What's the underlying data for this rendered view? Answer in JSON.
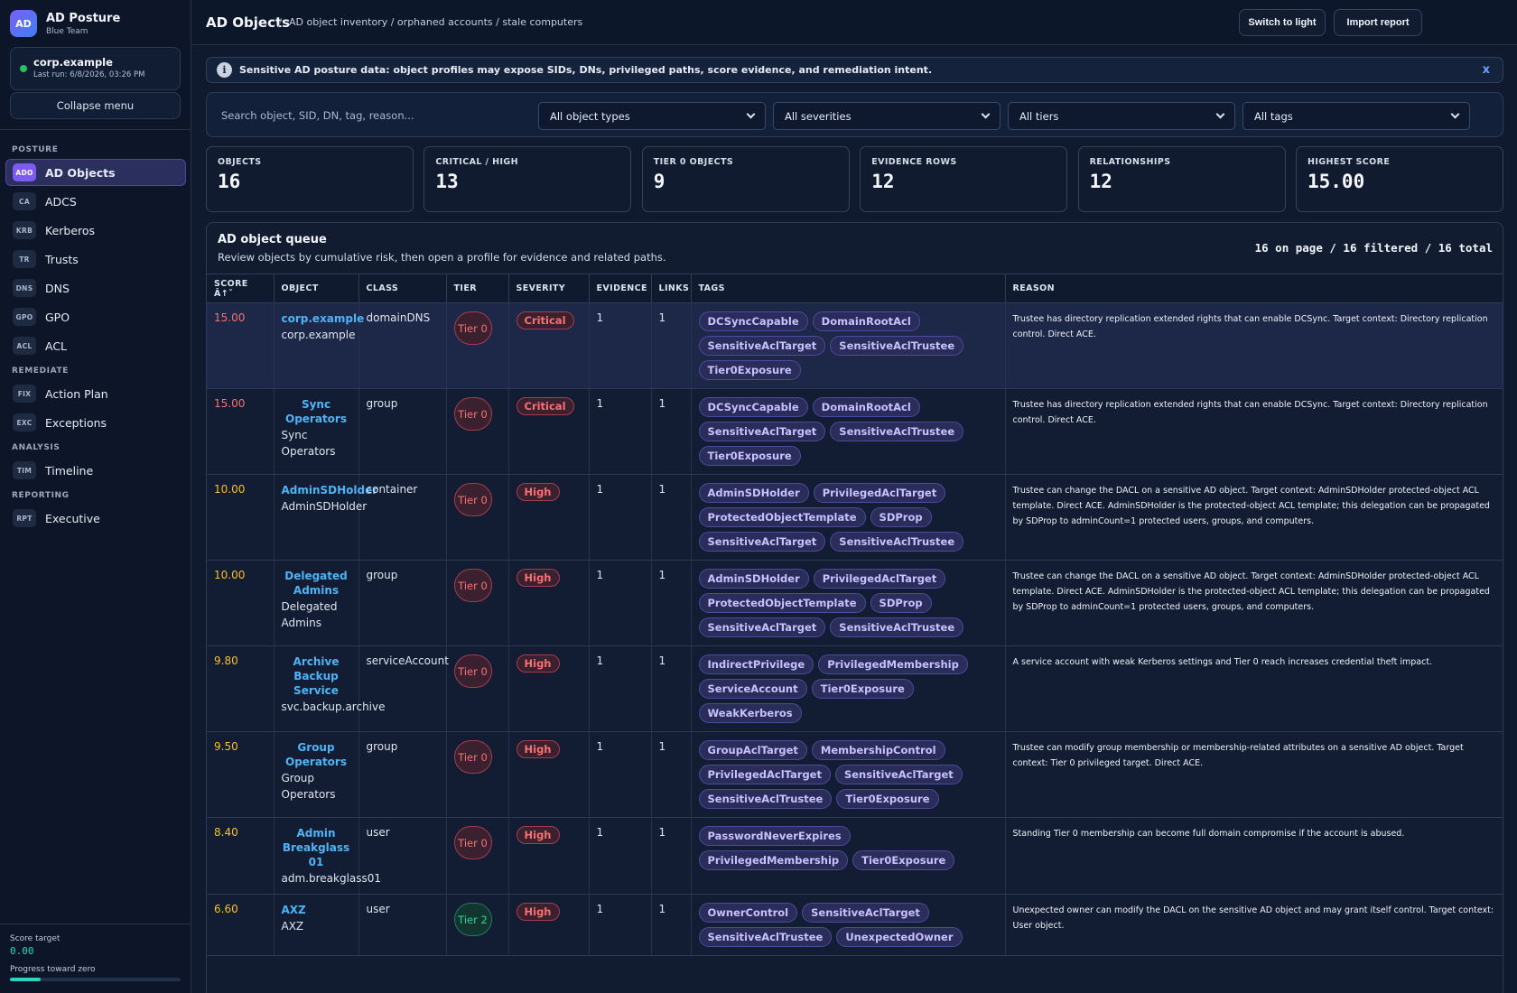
{
  "sidebar": {
    "logo": "AD",
    "title": "AD Posture",
    "subtitle": "Blue Team",
    "domain": "corp.example",
    "last_run": "Last run: 6/8/2026, 03:26 PM",
    "collapse_label": "Collapse menu",
    "sections": [
      {
        "label": "POSTURE",
        "items": [
          {
            "badge": "ADO",
            "label": "AD Objects",
            "active": true
          },
          {
            "badge": "CA",
            "label": "ADCS"
          },
          {
            "badge": "KRB",
            "label": "Kerberos"
          },
          {
            "badge": "TR",
            "label": "Trusts"
          },
          {
            "badge": "DNS",
            "label": "DNS"
          },
          {
            "badge": "GPO",
            "label": "GPO"
          },
          {
            "badge": "ACL",
            "label": "ACL"
          }
        ]
      },
      {
        "label": "REMEDIATE",
        "items": [
          {
            "badge": "FIX",
            "label": "Action Plan"
          },
          {
            "badge": "EXC",
            "label": "Exceptions"
          }
        ]
      },
      {
        "label": "ANALYSIS",
        "items": [
          {
            "badge": "TIM",
            "label": "Timeline"
          }
        ]
      },
      {
        "label": "REPORTING",
        "items": [
          {
            "badge": "RPT",
            "label": "Executive"
          }
        ]
      }
    ],
    "score_target_label": "Score target",
    "score_target_value": "0.00",
    "progress_label": "Progress toward zero",
    "progress_fraction": 0.18
  },
  "header": {
    "title": "AD Objects",
    "breadcrumb": "AD object inventory / orphaned accounts / stale computers",
    "switch_label": "Switch to light",
    "import_label": "Import report"
  },
  "notice": {
    "text": "Sensitive AD posture data: object profiles may expose SIDs, DNs, privileged paths, score evidence, and remediation intent.",
    "close": "x"
  },
  "filters": {
    "search_placeholder": "Search object, SID, DN, tag, reason...",
    "object_types": "All object types",
    "severities": "All severities",
    "tiers": "All tiers",
    "tags": "All tags"
  },
  "stats": [
    {
      "label": "OBJECTS",
      "value": "16"
    },
    {
      "label": "CRITICAL / HIGH",
      "value": "13"
    },
    {
      "label": "TIER 0 OBJECTS",
      "value": "9"
    },
    {
      "label": "EVIDENCE ROWS",
      "value": "12"
    },
    {
      "label": "RELATIONSHIPS",
      "value": "12"
    },
    {
      "label": "HIGHEST SCORE",
      "value": "15.00"
    }
  ],
  "queue": {
    "title": "AD object queue",
    "subtitle": "Review objects by cumulative risk, then open a profile for evidence and related paths.",
    "count": "16 on page / 16 filtered / 16 total",
    "columns": [
      "SCORE Â↑ˇ",
      "OBJECT",
      "CLASS",
      "TIER",
      "SEVERITY",
      "EVIDENCE",
      "LINKS",
      "TAGS",
      "REASON"
    ],
    "rows": [
      {
        "score": "15.00",
        "score_level": "red",
        "name": "corp.example",
        "sub": "corp.example",
        "name_left": true,
        "class": "domainDNS",
        "tier": "Tier 0",
        "tier_level": 0,
        "severity": "Critical",
        "evidence": "1",
        "links": "1",
        "tags": [
          "DCSyncCapable",
          "DomainRootAcl",
          "SensitiveAclTarget",
          "SensitiveAclTrustee",
          "Tier0Exposure"
        ],
        "reason": "Trustee has directory replication extended rights that can enable DCSync. Target context: Directory replication control. Direct ACE."
      },
      {
        "score": "15.00",
        "score_level": "red",
        "name": "Sync Operators",
        "sub": "Sync Operators",
        "class": "group",
        "tier": "Tier 0",
        "tier_level": 0,
        "severity": "Critical",
        "evidence": "1",
        "links": "1",
        "tags": [
          "DCSyncCapable",
          "DomainRootAcl",
          "SensitiveAclTarget",
          "SensitiveAclTrustee",
          "Tier0Exposure"
        ],
        "reason": "Trustee has directory replication extended rights that can enable DCSync. Target context: Directory replication control. Direct ACE."
      },
      {
        "score": "10.00",
        "score_level": "amber",
        "name": "AdminSDHolder",
        "sub": "AdminSDHolder",
        "class": "container",
        "tier": "Tier 0",
        "tier_level": 0,
        "severity": "High",
        "evidence": "1",
        "links": "1",
        "tags": [
          "AdminSDHolder",
          "PrivilegedAclTarget",
          "ProtectedObjectTemplate",
          "SDProp",
          "SensitiveAclTarget",
          "SensitiveAclTrustee"
        ],
        "reason": "Trustee can change the DACL on a sensitive AD object. Target context: AdminSDHolder protected-object ACL template. Direct ACE. AdminSDHolder is the protected-object ACL template; this delegation can be propagated by SDProp to adminCount=1 protected users, groups, and computers."
      },
      {
        "score": "10.00",
        "score_level": "amber",
        "name": "Delegated Admins",
        "sub": "Delegated Admins",
        "class": "group",
        "tier": "Tier 0",
        "tier_level": 0,
        "severity": "High",
        "evidence": "1",
        "links": "1",
        "tags": [
          "AdminSDHolder",
          "PrivilegedAclTarget",
          "ProtectedObjectTemplate",
          "SDProp",
          "SensitiveAclTarget",
          "SensitiveAclTrustee"
        ],
        "reason": "Trustee can change the DACL on a sensitive AD object. Target context: AdminSDHolder protected-object ACL template. Direct ACE. AdminSDHolder is the protected-object ACL template; this delegation can be propagated by SDProp to adminCount=1 protected users, groups, and computers."
      },
      {
        "score": "9.80",
        "score_level": "amber",
        "name": "Archive Backup Service",
        "sub": "svc.backup.archive",
        "class": "serviceAccount",
        "tier": "Tier 0",
        "tier_level": 0,
        "severity": "High",
        "evidence": "1",
        "links": "1",
        "tags": [
          "IndirectPrivilege",
          "PrivilegedMembership",
          "ServiceAccount",
          "Tier0Exposure",
          "WeakKerberos"
        ],
        "reason": "A service account with weak Kerberos settings and Tier 0 reach increases credential theft impact."
      },
      {
        "score": "9.50",
        "score_level": "amber",
        "name": "Group Operators",
        "sub": "Group Operators",
        "class": "group",
        "tier": "Tier 0",
        "tier_level": 0,
        "severity": "High",
        "evidence": "1",
        "links": "1",
        "tags": [
          "GroupAclTarget",
          "MembershipControl",
          "PrivilegedAclTarget",
          "SensitiveAclTarget",
          "SensitiveAclTrustee",
          "Tier0Exposure"
        ],
        "reason": "Trustee can modify group membership or membership-related attributes on a sensitive AD object. Target context: Tier 0 privileged target. Direct ACE."
      },
      {
        "score": "8.40",
        "score_level": "amber",
        "name": "Admin Breakglass 01",
        "sub": "adm.breakglass01",
        "class": "user",
        "tier": "Tier 0",
        "tier_level": 0,
        "severity": "High",
        "evidence": "1",
        "links": "1",
        "tags": [
          "PasswordNeverExpires",
          "PrivilegedMembership",
          "Tier0Exposure"
        ],
        "reason": "Standing Tier 0 membership can become full domain compromise if the account is abused."
      },
      {
        "score": "6.60",
        "score_level": "amber",
        "name": "AXZ",
        "sub": "AXZ",
        "name_left": true,
        "class": "user",
        "tier": "Tier 2",
        "tier_level": 2,
        "severity": "High",
        "evidence": "1",
        "links": "1",
        "tags": [
          "OwnerControl",
          "SensitiveAclTarget",
          "SensitiveAclTrustee",
          "UnexpectedOwner"
        ],
        "reason": "Unexpected owner can modify the DACL on the sensitive AD object and may grant itself control. Target context: User object."
      }
    ]
  }
}
